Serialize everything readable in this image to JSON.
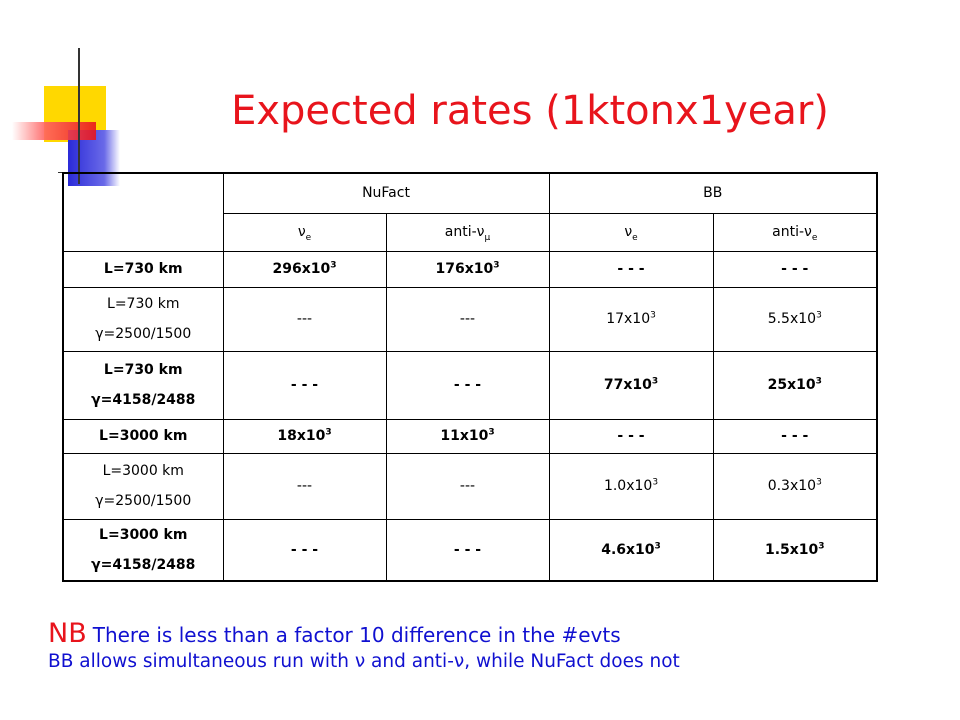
{
  "title": "Expected rates (1ktonx1year)",
  "table": {
    "groups": [
      "NuFact",
      "BB"
    ],
    "subheads": [
      {
        "text": "ν",
        "sub": "e"
      },
      {
        "text": "anti-ν",
        "sub": "μ"
      },
      {
        "text": "ν",
        "sub": "e"
      },
      {
        "text": "anti-ν",
        "sub": "e"
      }
    ],
    "rows": [
      {
        "label": [
          "L=730 km"
        ],
        "bold": true,
        "cells": [
          {
            "base": "296x10",
            "exp": "3"
          },
          {
            "base": "176x10",
            "exp": "3"
          },
          {
            "base": "- - -"
          },
          {
            "base": "- - -"
          }
        ]
      },
      {
        "label": [
          "L=730 km",
          "γ=2500/1500"
        ],
        "bold": false,
        "cells": [
          {
            "base": "---"
          },
          {
            "base": "---"
          },
          {
            "base": "17x10",
            "exp": "3"
          },
          {
            "base": "5.5x10",
            "exp": "3"
          }
        ]
      },
      {
        "label": [
          "L=730 km",
          "γ=4158/2488"
        ],
        "bold": true,
        "cells": [
          {
            "base": "- - -"
          },
          {
            "base": "- - -"
          },
          {
            "base": "77x10",
            "exp": "3"
          },
          {
            "base": "25x10",
            "exp": "3"
          }
        ]
      },
      {
        "label": [
          "L=3000 km"
        ],
        "bold": true,
        "cells": [
          {
            "base": "18x10",
            "exp": "3"
          },
          {
            "base": "11x10",
            "exp": "3"
          },
          {
            "base": "- - -"
          },
          {
            "base": "- - -"
          }
        ]
      },
      {
        "label": [
          "L=3000 km",
          "γ=2500/1500"
        ],
        "bold": false,
        "cells": [
          {
            "base": "---"
          },
          {
            "base": "---"
          },
          {
            "base": "1.0x10",
            "exp": "3"
          },
          {
            "base": "0.3x10",
            "exp": "3"
          }
        ]
      },
      {
        "label": [
          "L=3000 km",
          "γ=4158/2488"
        ],
        "bold": true,
        "cells": [
          {
            "base": "- - -"
          },
          {
            "base": "- - -"
          },
          {
            "base": "4.6x10",
            "exp": "3"
          },
          {
            "base": "1.5x10",
            "exp": "3"
          }
        ]
      }
    ]
  },
  "notes": {
    "lead": "NB",
    "line1": "There is less than a factor 10 difference in the #evts",
    "line2": "BB allows simultaneous run with ν and anti-ν, while NuFact does not"
  }
}
